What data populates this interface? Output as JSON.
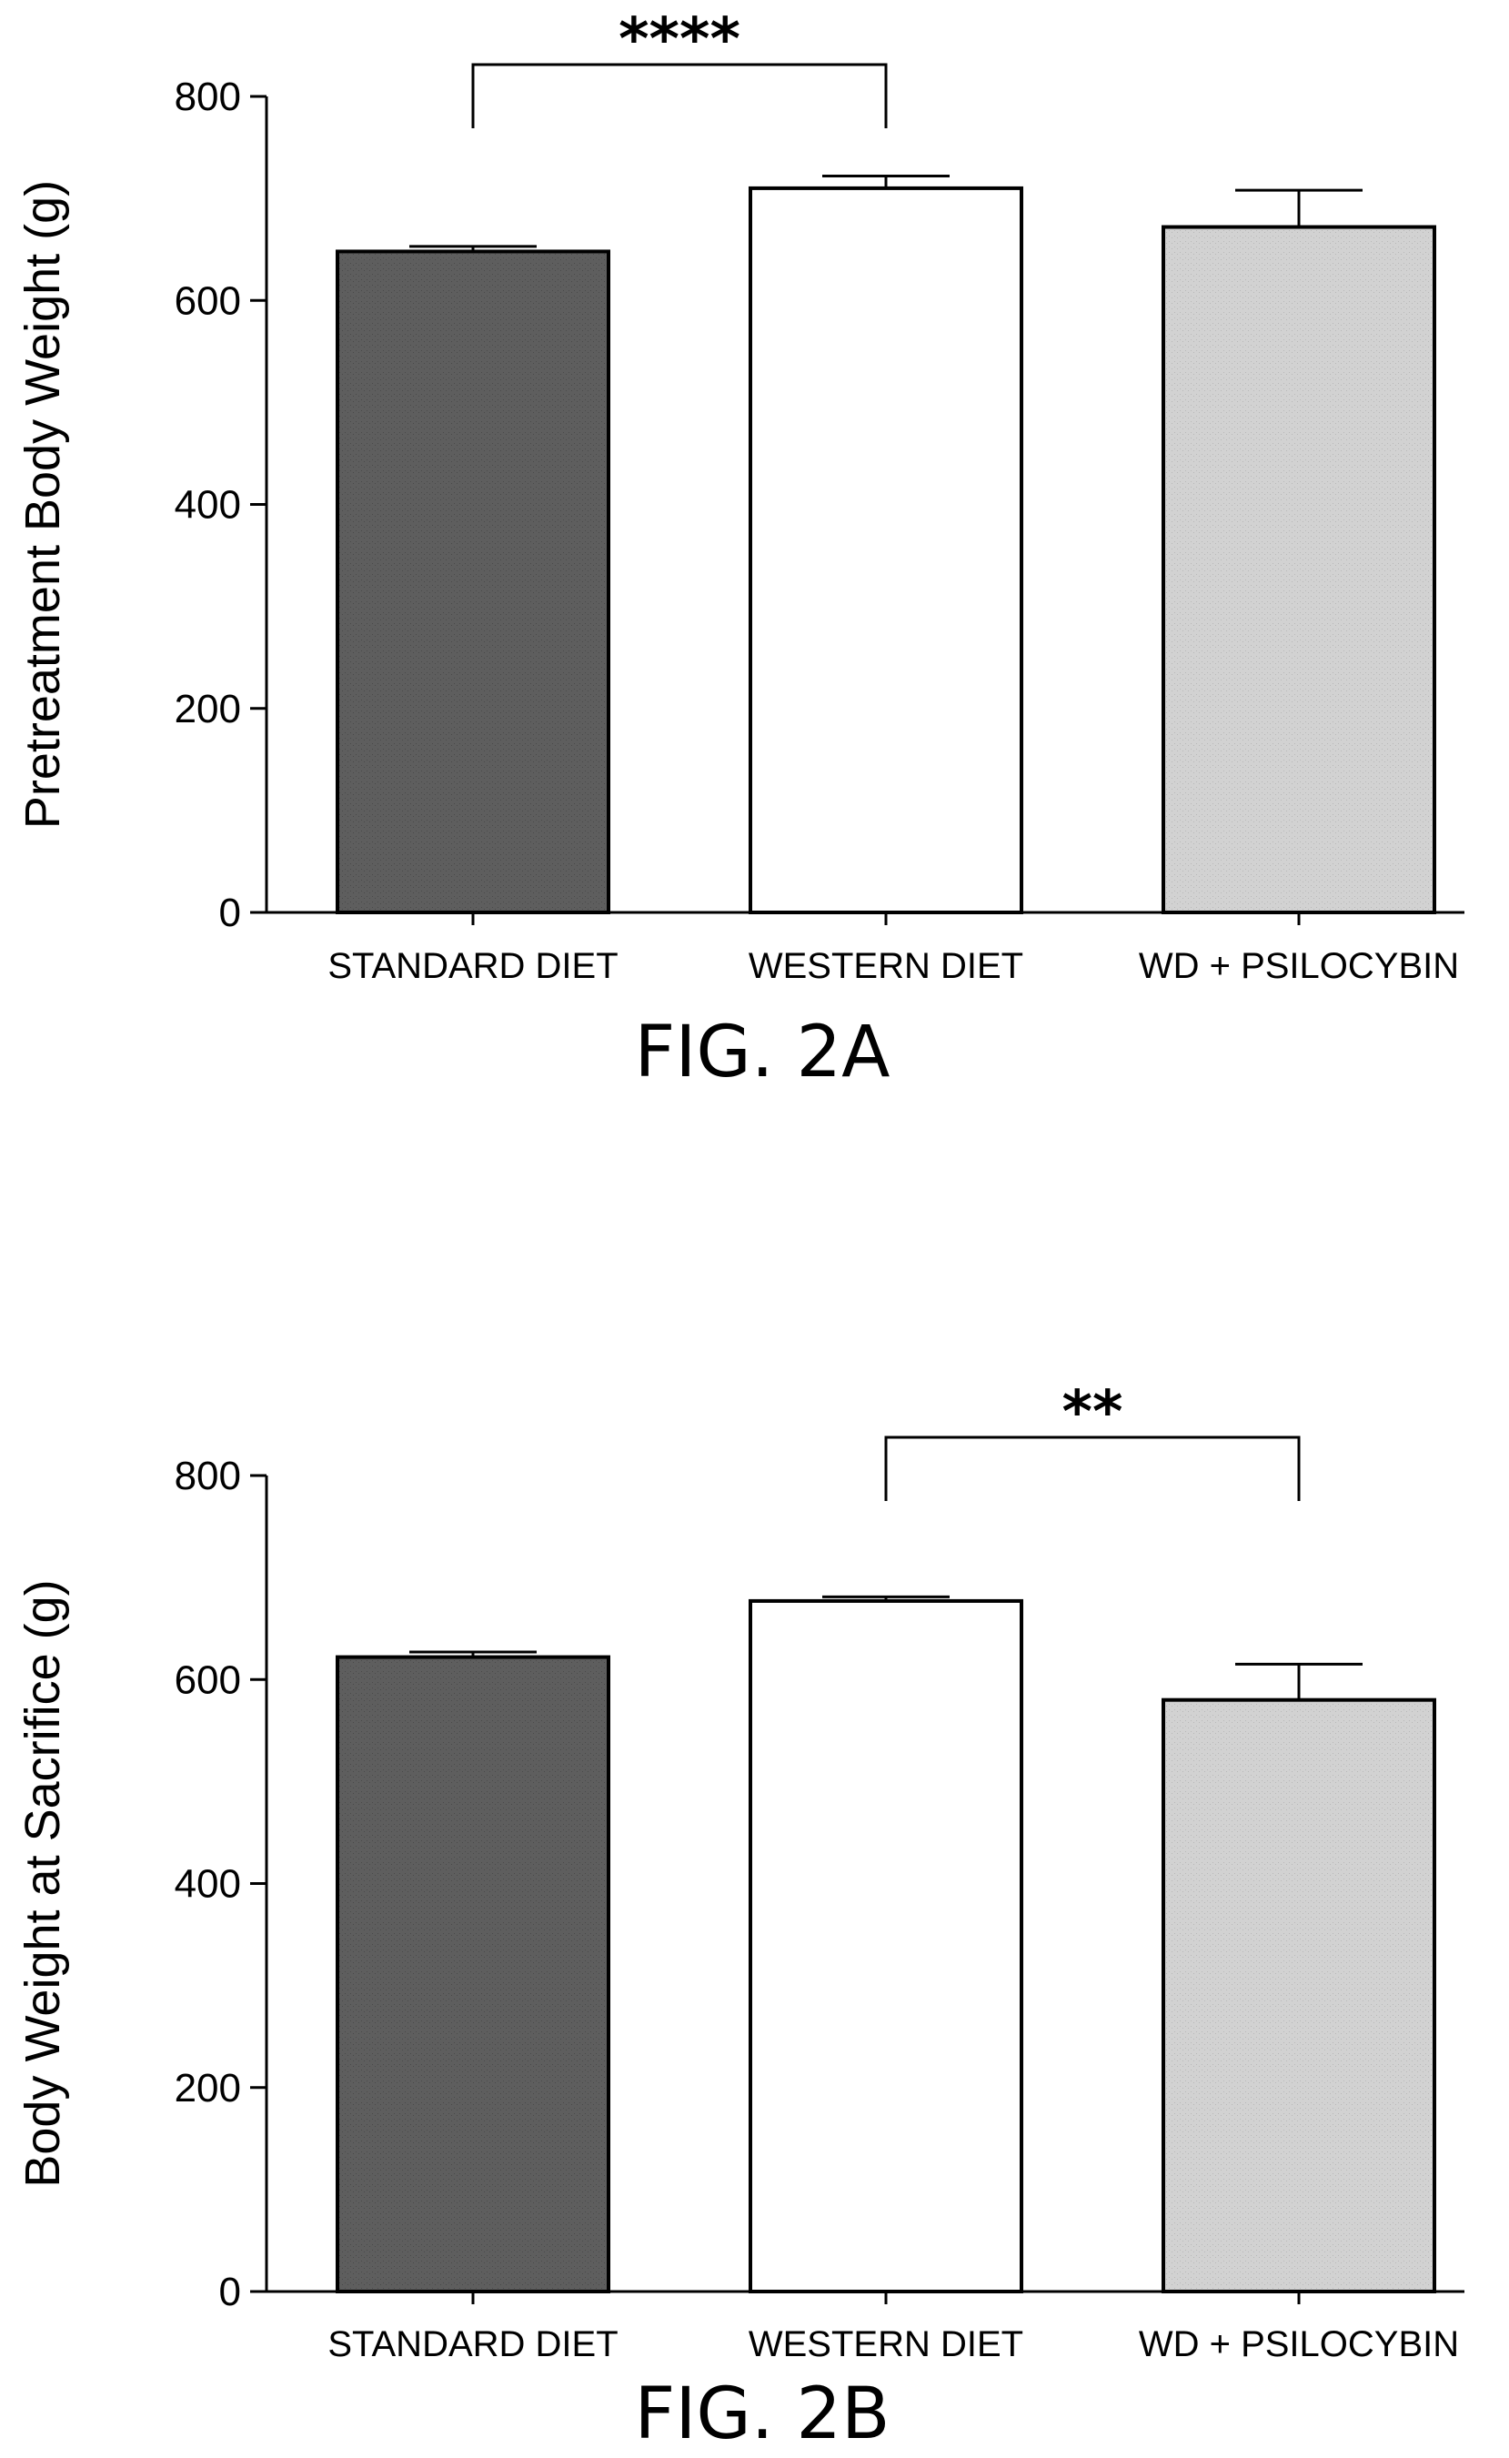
{
  "chart_data": [
    {
      "type": "bar",
      "caption": "FIG. 2A",
      "ylabel": "Pretreatment  Body Weight (g)",
      "xlabel": "",
      "categories": [
        "STANDARD DIET",
        "WESTERN DIET",
        "WD + PSILOCYBIN"
      ],
      "values": [
        648,
        710,
        672
      ],
      "error": [
        5,
        12,
        36
      ],
      "ylim": [
        0,
        800
      ],
      "yticks": [
        0,
        200,
        400,
        600,
        800
      ],
      "bar_colors": [
        "#5e5e5e",
        "#ffffff",
        "#d2d2d2"
      ],
      "significance": [
        {
          "from": 0,
          "to": 1,
          "label": "****"
        }
      ],
      "grid": false
    },
    {
      "type": "bar",
      "caption": "FIG. 2B",
      "ylabel": "Body Weight at Sacrifice (g)",
      "xlabel": "",
      "categories": [
        "STANDARD DIET",
        "WESTERN DIET",
        "WD + PSILOCYBIN"
      ],
      "values": [
        622,
        677,
        580
      ],
      "error": [
        5,
        4,
        35
      ],
      "ylim": [
        0,
        800
      ],
      "yticks": [
        0,
        200,
        400,
        600,
        800
      ],
      "bar_colors": [
        "#5e5e5e",
        "#ffffff",
        "#d2d2d2"
      ],
      "significance": [
        {
          "from": 1,
          "to": 2,
          "label": "**"
        }
      ],
      "grid": false
    }
  ]
}
